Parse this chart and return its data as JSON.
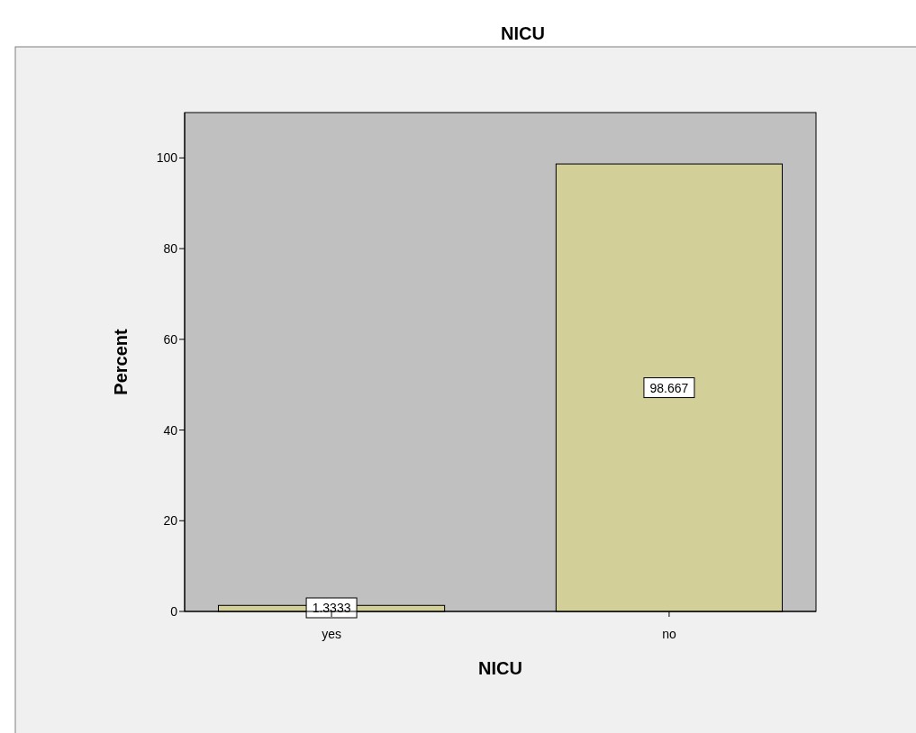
{
  "chart_data": {
    "type": "bar",
    "title": "NICU",
    "xlabel": "NICU",
    "ylabel": "Percent",
    "categories": [
      "yes",
      "no"
    ],
    "values": [
      1.3333,
      98.667
    ],
    "color": "#d3cf98",
    "ylim": [
      0,
      110
    ],
    "yticks": [
      0,
      20,
      40,
      60,
      80,
      100
    ],
    "data_labels": true,
    "grid": false
  }
}
